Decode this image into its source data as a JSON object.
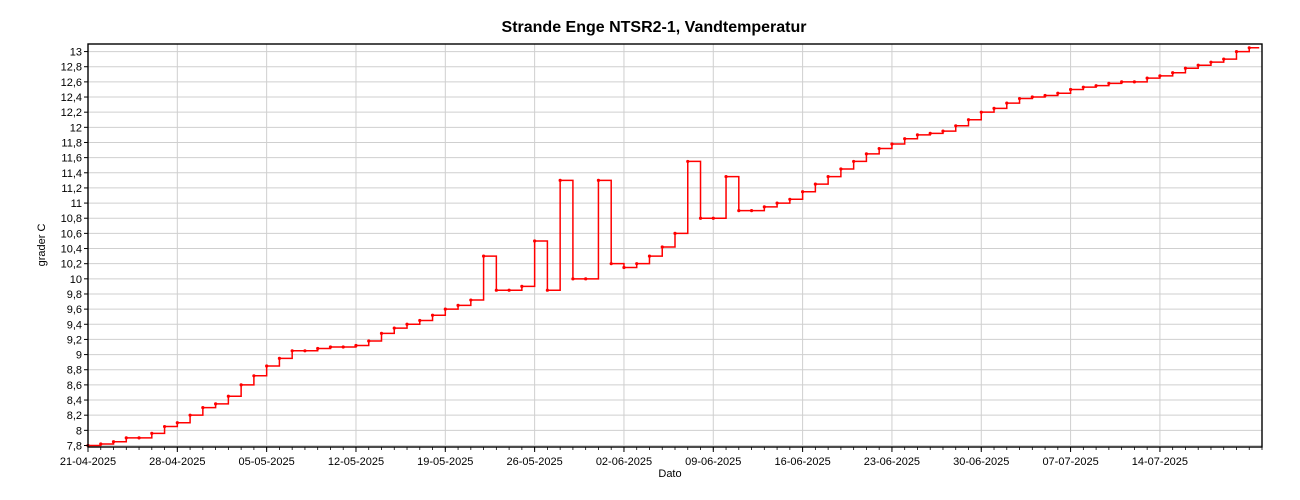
{
  "chart_data": {
    "type": "line",
    "title": "Strande Enge NTSR2-1, Vandtemperatur",
    "xlabel": "Dato",
    "ylabel": "grader C",
    "x_tick_labels": [
      "21-04-2025",
      "28-04-2025",
      "05-05-2025",
      "12-05-2025",
      "19-05-2025",
      "26-05-2025",
      "02-06-2025",
      "09-06-2025",
      "16-06-2025",
      "23-06-2025",
      "30-06-2025",
      "07-07-2025",
      "14-07-2025"
    ],
    "y_tick_labels": [
      "7,8",
      "8",
      "8,2",
      "8,4",
      "8,6",
      "8,8",
      "9",
      "9,2",
      "9,4",
      "9,6",
      "9,8",
      "10",
      "10,2",
      "10,4",
      "10,6",
      "10,8",
      "11",
      "11,2",
      "11,4",
      "11,6",
      "11,8",
      "12",
      "12,2",
      "12,4",
      "12,6",
      "12,8",
      "13"
    ],
    "xlim": [
      "21-04-2025",
      "22-07-2025"
    ],
    "ylim": [
      7.78,
      13.1
    ],
    "grid": true,
    "color": "#ff0000",
    "series": [
      {
        "x": [
          "21-04-2025",
          "22-04-2025",
          "23-04-2025",
          "24-04-2025",
          "25-04-2025",
          "26-04-2025",
          "27-04-2025",
          "28-04-2025",
          "29-04-2025",
          "30-04-2025",
          "01-05-2025",
          "02-05-2025",
          "03-05-2025",
          "04-05-2025",
          "05-05-2025",
          "06-05-2025",
          "07-05-2025",
          "08-05-2025",
          "09-05-2025",
          "10-05-2025",
          "11-05-2025",
          "12-05-2025",
          "13-05-2025",
          "14-05-2025",
          "15-05-2025",
          "16-05-2025",
          "17-05-2025",
          "18-05-2025",
          "19-05-2025",
          "20-05-2025",
          "21-05-2025",
          "22-05-2025",
          "23-05-2025",
          "24-05-2025",
          "25-05-2025",
          "26-05-2025",
          "27-05-2025",
          "28-05-2025",
          "29-05-2025",
          "30-05-2025",
          "31-05-2025",
          "01-06-2025",
          "02-06-2025",
          "03-06-2025",
          "04-06-2025",
          "05-06-2025",
          "06-06-2025",
          "07-06-2025",
          "08-06-2025",
          "09-06-2025",
          "10-06-2025",
          "11-06-2025",
          "12-06-2025",
          "13-06-2025",
          "14-06-2025",
          "15-06-2025",
          "16-06-2025",
          "17-06-2025",
          "18-06-2025",
          "19-06-2025",
          "20-06-2025",
          "21-06-2025",
          "22-06-2025",
          "23-06-2025",
          "24-06-2025",
          "25-06-2025",
          "26-06-2025",
          "27-06-2025",
          "28-06-2025",
          "29-06-2025",
          "30-06-2025",
          "01-07-2025",
          "02-07-2025",
          "03-07-2025",
          "04-07-2025",
          "05-07-2025",
          "06-07-2025",
          "07-07-2025",
          "08-07-2025",
          "09-07-2025",
          "10-07-2025",
          "11-07-2025",
          "12-07-2025",
          "13-07-2025",
          "14-07-2025",
          "15-07-2025",
          "16-07-2025",
          "17-07-2025",
          "18-07-2025",
          "19-07-2025",
          "20-07-2025",
          "21-07-2025"
        ],
        "values": [
          7.8,
          7.82,
          7.85,
          7.9,
          7.9,
          7.96,
          8.05,
          8.1,
          8.2,
          8.3,
          8.35,
          8.45,
          8.6,
          8.72,
          8.85,
          8.95,
          9.05,
          9.05,
          9.08,
          9.1,
          9.1,
          9.12,
          9.18,
          9.28,
          9.35,
          9.4,
          9.45,
          9.52,
          9.6,
          9.65,
          9.72,
          10.3,
          9.85,
          9.85,
          9.9,
          10.5,
          9.85,
          11.3,
          10.0,
          10.0,
          11.3,
          10.2,
          10.15,
          10.2,
          10.3,
          10.42,
          10.6,
          11.55,
          10.8,
          10.8,
          11.35,
          10.9,
          10.9,
          10.95,
          11.0,
          11.05,
          11.15,
          11.25,
          11.35,
          11.45,
          11.55,
          11.65,
          11.72,
          11.78,
          11.85,
          11.9,
          11.92,
          11.95,
          12.02,
          12.1,
          12.2,
          12.25,
          12.32,
          12.38,
          12.4,
          12.42,
          12.45,
          12.5,
          12.53,
          12.55,
          12.58,
          12.6,
          12.6,
          12.65,
          12.68,
          12.72,
          12.78,
          12.82,
          12.86,
          12.9,
          13.0,
          13.05
        ]
      }
    ]
  }
}
